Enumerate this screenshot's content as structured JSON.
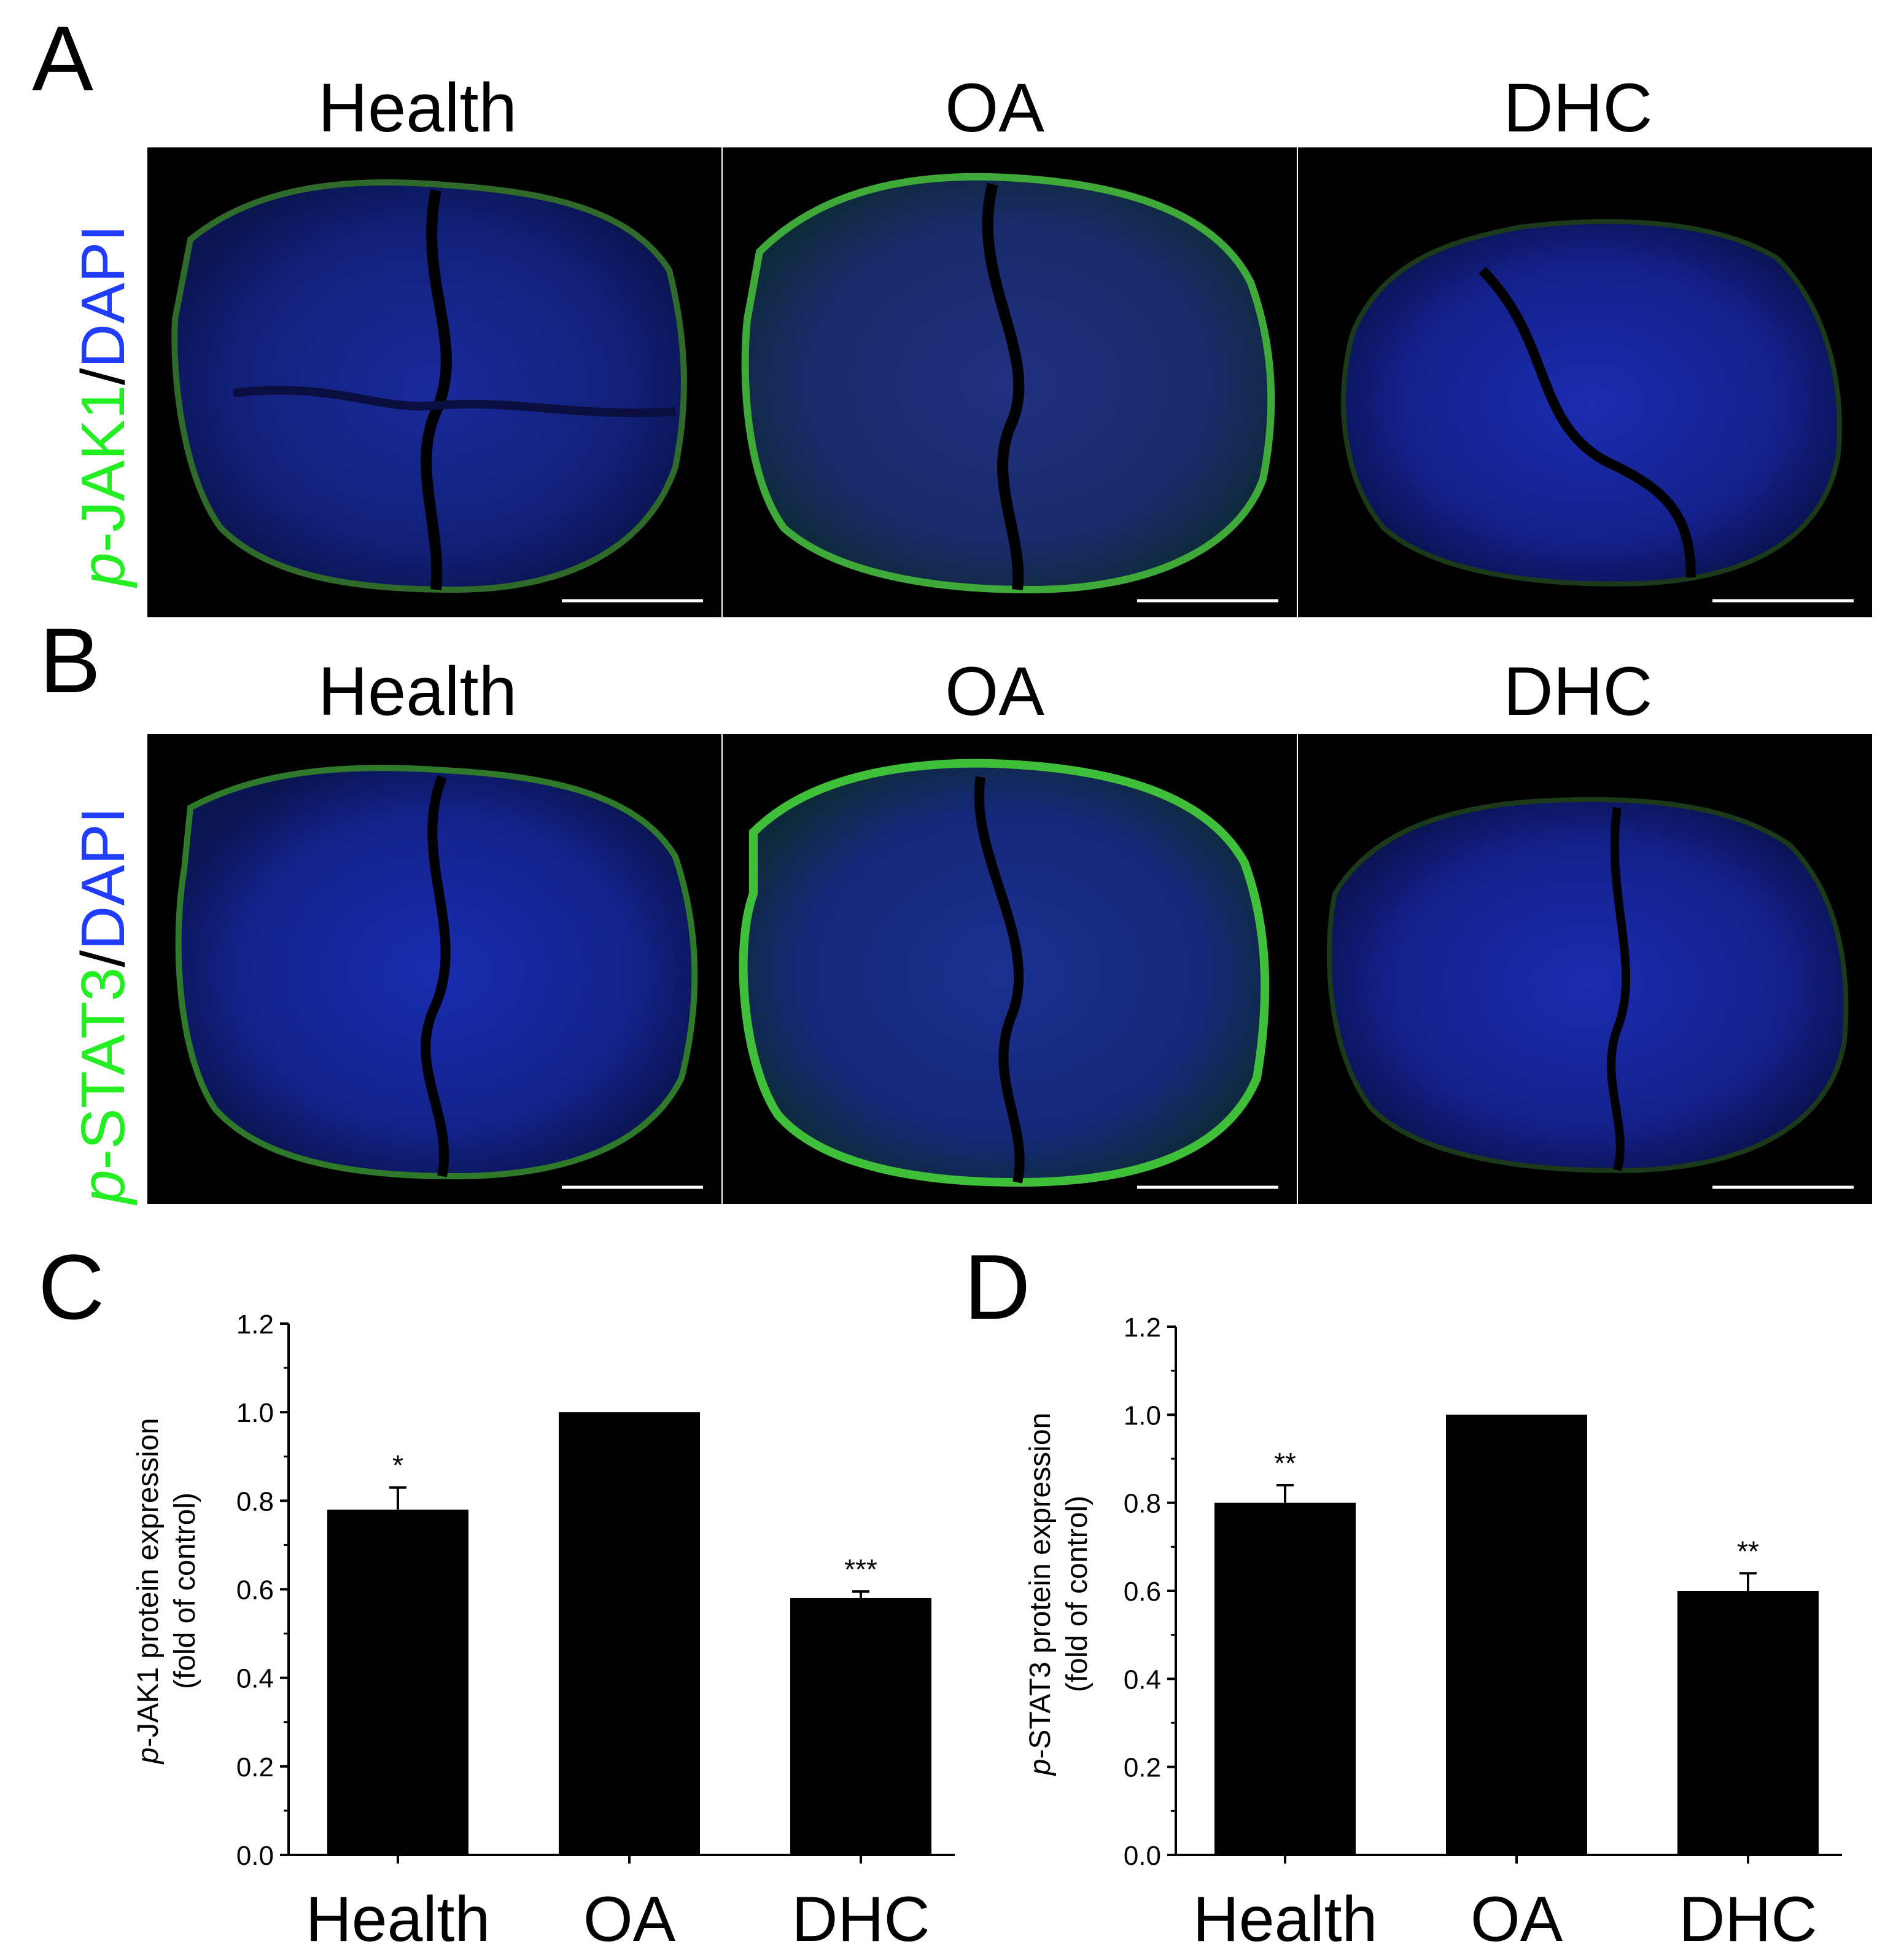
{
  "panel_labels": {
    "A": "A",
    "B": "B",
    "C": "C",
    "D": "D"
  },
  "row_A": {
    "columns": [
      "Health",
      "OA",
      "DHC"
    ],
    "stain_prefix": "p",
    "stain_marker": "-JAK1",
    "stain_sep": "/",
    "stain_dapi": "DAPI"
  },
  "row_B": {
    "columns": [
      "Health",
      "OA",
      "DHC"
    ],
    "stain_prefix": "p",
    "stain_marker": "-STAT3",
    "stain_sep": "/",
    "stain_dapi": "DAPI"
  },
  "colors": {
    "green_stain": "#22ee22",
    "blue_stain": "#1f3cff",
    "bar": "#000000"
  },
  "chart_data": [
    {
      "type": "bar",
      "panel": "C",
      "categories": [
        "Health",
        "OA",
        "DHC"
      ],
      "values": [
        0.78,
        1.0,
        0.58
      ],
      "errors": [
        0.05,
        0.0,
        0.015
      ],
      "significance": [
        "*",
        "",
        "***"
      ],
      "ylabel_prefix": "p",
      "ylabel_line1": "-JAK1 protein expression",
      "ylabel_line2": "(fold of control)",
      "ylim": [
        0.0,
        1.2
      ],
      "yticks": [
        "0.0",
        "0.2",
        "0.4",
        "0.6",
        "0.8",
        "1.0",
        "1.2"
      ]
    },
    {
      "type": "bar",
      "panel": "D",
      "categories": [
        "Health",
        "OA",
        "DHC"
      ],
      "values": [
        0.8,
        1.0,
        0.6
      ],
      "errors": [
        0.04,
        0.0,
        0.04
      ],
      "significance": [
        "**",
        "",
        "**"
      ],
      "ylabel_prefix": "p",
      "ylabel_line1": "-STAT3 protein expression",
      "ylabel_line2": "(fold of control)",
      "ylim": [
        0.0,
        1.2
      ],
      "yticks": [
        "0.0",
        "0.2",
        "0.4",
        "0.6",
        "0.8",
        "1.0",
        "1.2"
      ]
    }
  ]
}
